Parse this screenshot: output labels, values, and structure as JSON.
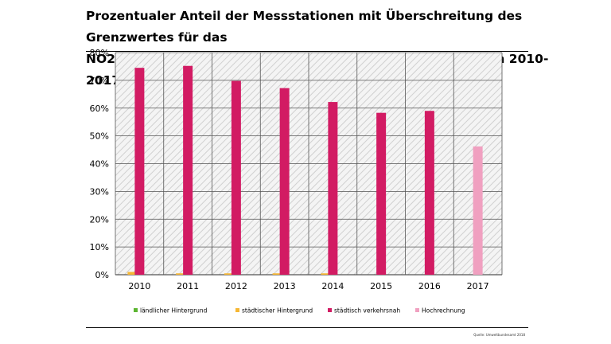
{
  "title_line1": "Prozentualer Anteil der Messstationen mit Überschreitung des Grenzwertes für das",
  "title_line2": "NO2-Jahresmittel im jeweiligen Belastungsregime, Zeitraum 2010-2017",
  "source": "Quelle: Umweltbundesamt 2018",
  "colors": {
    "laendlich": "#5cb531",
    "staedtisch_hintergrund": "#f6b734",
    "verkehrsnah": "#d21b63",
    "hochrechnung": "#f0a0c0",
    "grid": "#555555",
    "hatch": "#d0d0d0"
  },
  "chart_data": {
    "type": "bar",
    "title": "Prozentualer Anteil der Messstationen mit Überschreitung des Grenzwertes für das NO2-Jahresmittel im jeweiligen Belastungsregime, Zeitraum 2010-2017",
    "categories": [
      "2010",
      "2011",
      "2012",
      "2013",
      "2014",
      "2015",
      "2016",
      "2017"
    ],
    "ylim": [
      0,
      80
    ],
    "yticks": [
      0,
      10,
      20,
      30,
      40,
      50,
      60,
      70,
      80
    ],
    "ytick_labels": [
      "0%",
      "10%",
      "20%",
      "30%",
      "40%",
      "50%",
      "60%",
      "70%",
      "80%"
    ],
    "grid": true,
    "legend_position": "bottom",
    "series": [
      {
        "name": "ländlicher Hintergrund",
        "values": [
          0,
          0,
          0,
          0,
          0,
          0,
          0,
          0
        ]
      },
      {
        "name": "städtischer Hintergrund",
        "values": [
          1.0,
          0.5,
          0.5,
          0.5,
          0.5,
          0,
          0,
          0
        ]
      },
      {
        "name": "städtisch verkehrsnah",
        "values": [
          74.5,
          75.2,
          69.8,
          67.2,
          62.2,
          58.3,
          59.0,
          null
        ]
      },
      {
        "name": "Hochrechnung",
        "values": [
          null,
          null,
          null,
          null,
          null,
          null,
          null,
          46.2
        ]
      }
    ]
  }
}
